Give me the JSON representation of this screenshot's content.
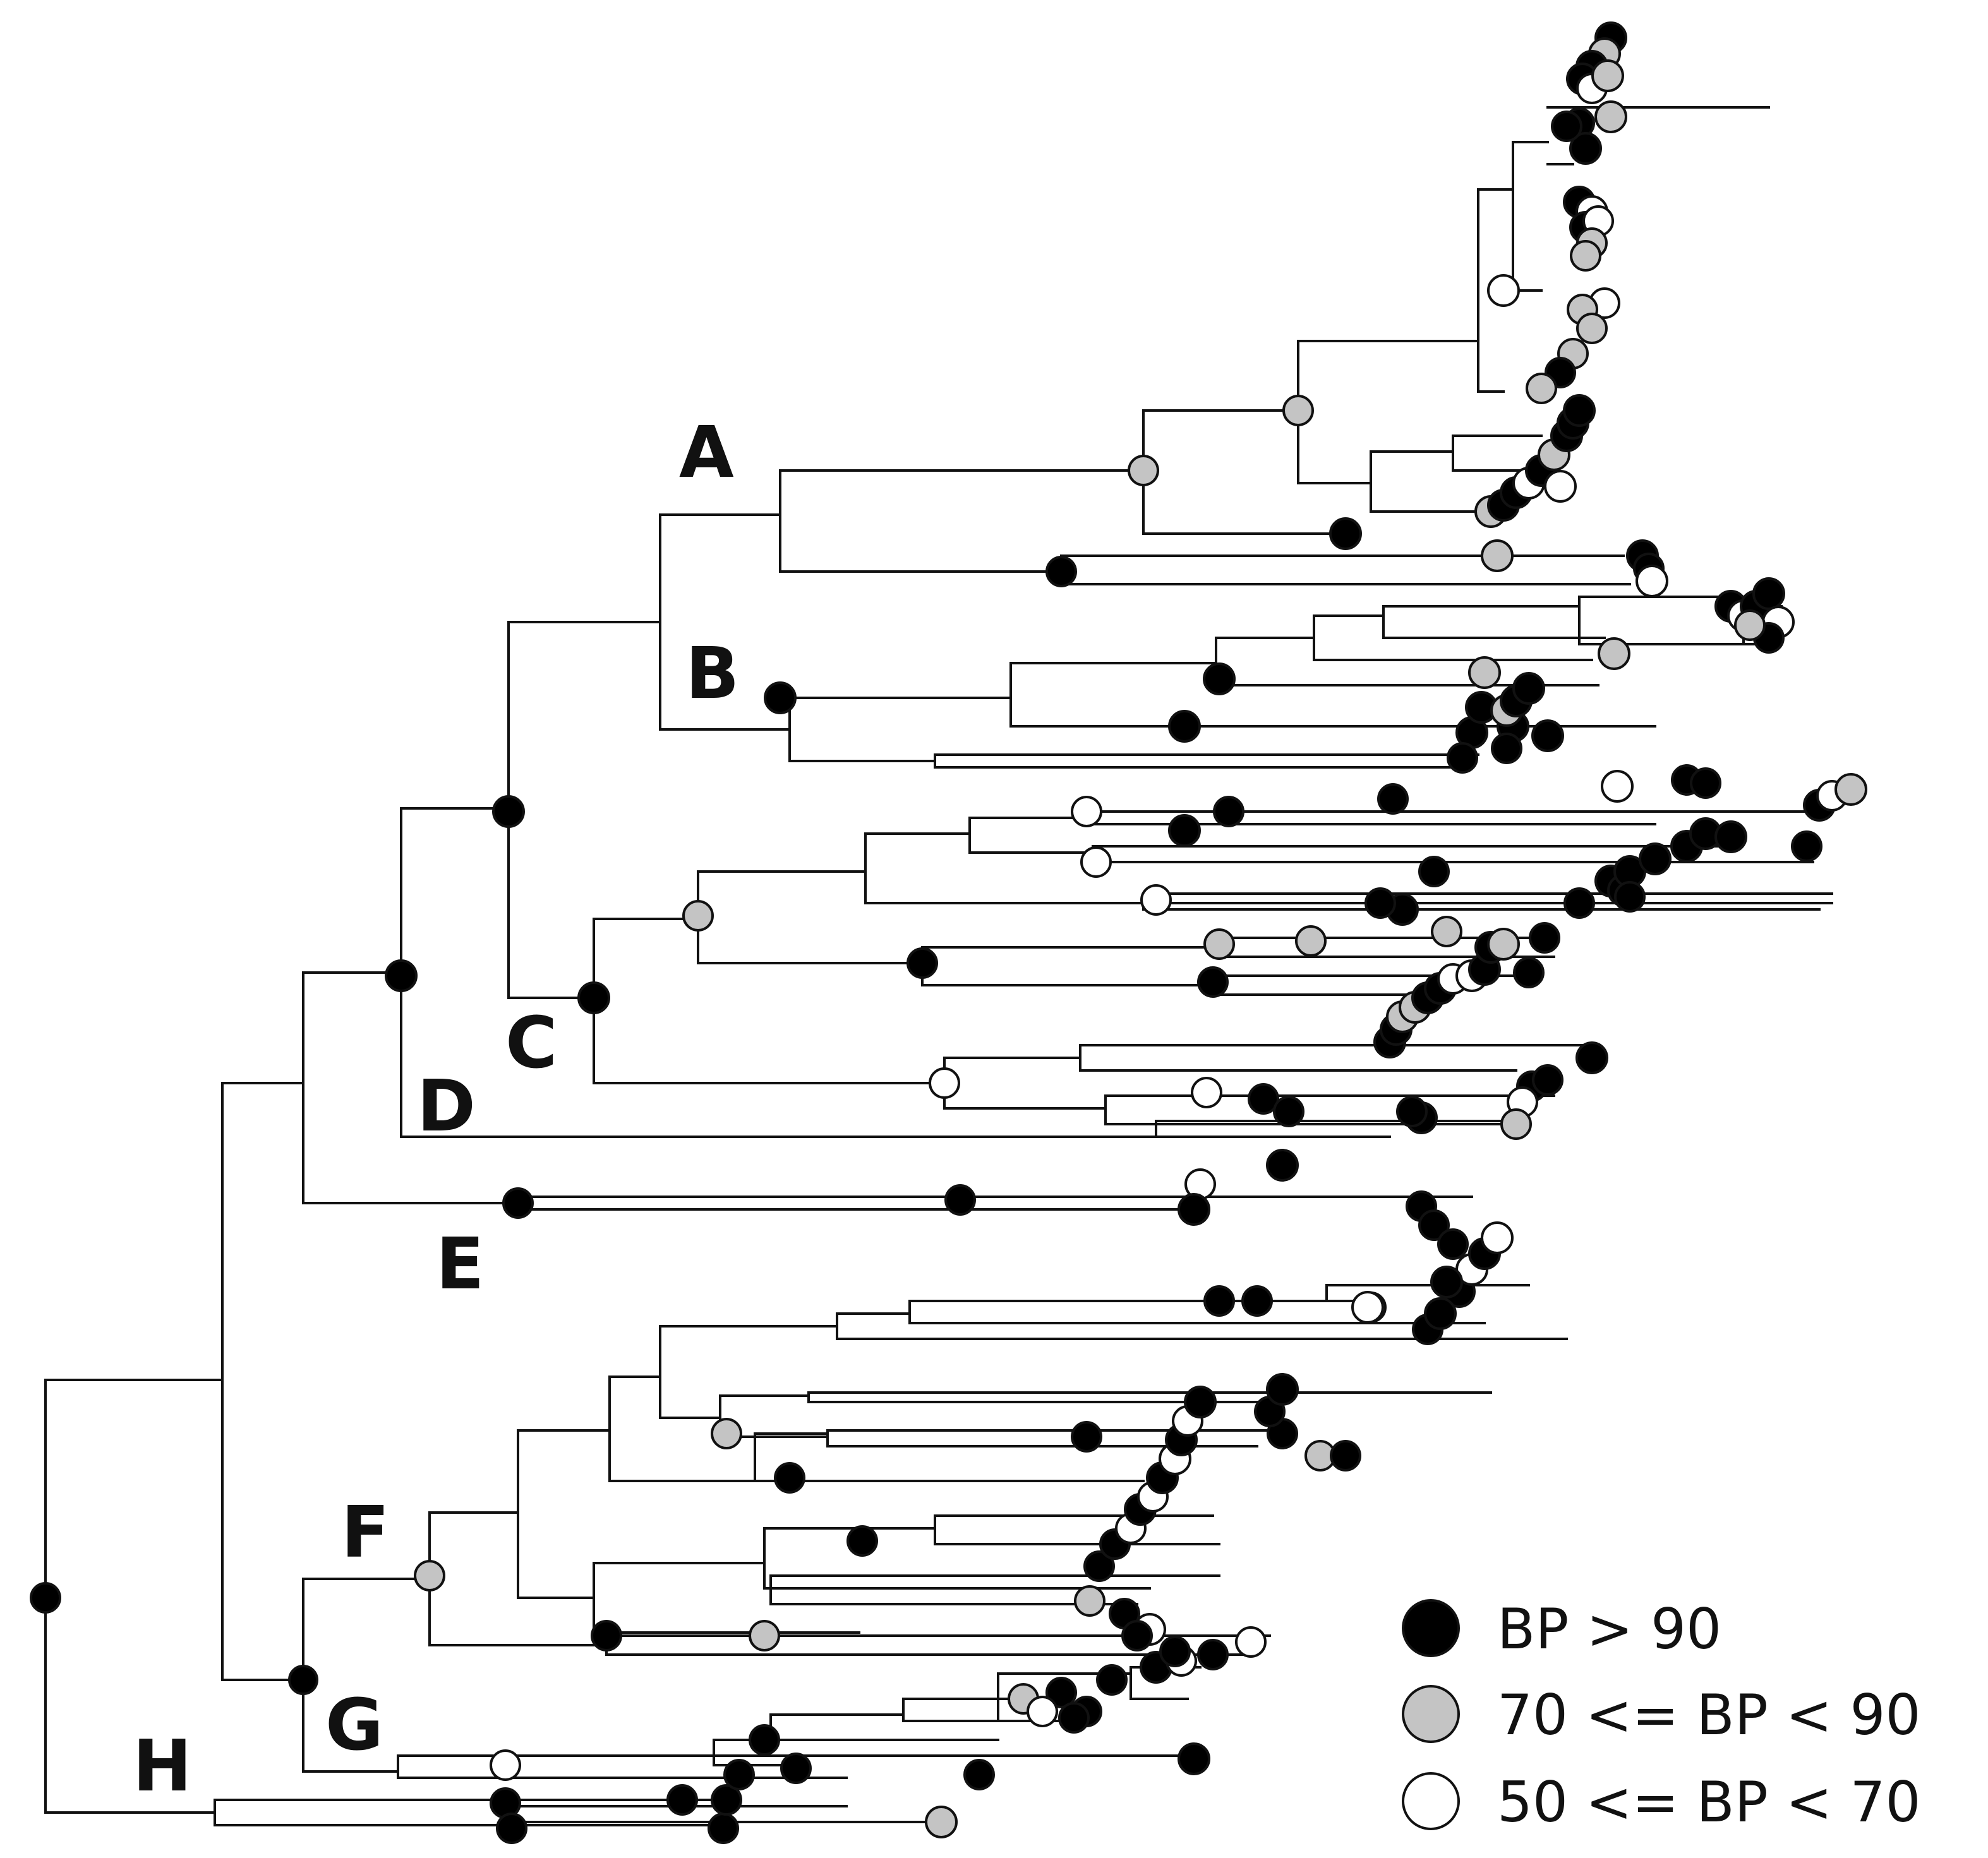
{
  "figure": {
    "type": "phylogenetic-tree",
    "clade_labels": [
      "A",
      "B",
      "C",
      "D",
      "E",
      "F",
      "G",
      "H"
    ]
  },
  "support_classes": {
    "high": {
      "fill": "#000000",
      "label": "BP > 90"
    },
    "mid": {
      "fill": "#c4c4c4",
      "label": "70 <= BP < 90"
    },
    "low": {
      "fill": "#ffffff",
      "label": "50 <= BP < 70"
    }
  },
  "legend": [
    {
      "class": "high",
      "label": "BP > 90"
    },
    {
      "class": "mid",
      "label": "70 <= BP < 90"
    },
    {
      "class": "low",
      "label": "50 <= BP < 70"
    }
  ]
}
